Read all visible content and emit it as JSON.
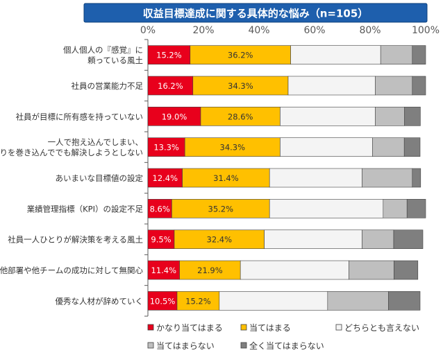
{
  "chart_data": {
    "type": "bar",
    "orientation": "horizontal",
    "stacked": true,
    "title": "収益目標達成に関する具体的な悩み（n=105）",
    "xlim": [
      0,
      100
    ],
    "ticks": [
      0,
      20,
      40,
      60,
      80,
      100
    ],
    "tick_labels": [
      "0%",
      "20%",
      "40%",
      "60%",
      "80%",
      "100%"
    ],
    "categories": [
      [
        "個人個人の『感覚』に",
        "頼っている風土"
      ],
      [
        "社員の営業能力不足"
      ],
      [
        "社員が目標に所有感を持っていない"
      ],
      [
        "一人で抱え込んでしまい、",
        "周りを巻き込んででも解決しようとしない"
      ],
      [
        "あいまいな目標値の設定"
      ],
      [
        "業績管理指標（KPI）の設定不足"
      ],
      [
        "社員一人ひとりが解決策を考える風土"
      ],
      [
        "他部署や他チームの成功に対して無関心"
      ],
      [
        "優秀な人材が辞めていく"
      ]
    ],
    "series": [
      {
        "name": "かなり当てはまる",
        "color": "#e8001c",
        "label_color": "#ffffff",
        "labeled": true,
        "values": [
          15.2,
          16.2,
          19.0,
          13.3,
          12.4,
          8.6,
          9.5,
          11.4,
          10.5
        ]
      },
      {
        "name": "当てはまる",
        "color": "#ffc000",
        "label_color": "#333333",
        "labeled": true,
        "values": [
          36.2,
          34.3,
          28.6,
          34.3,
          31.4,
          35.2,
          32.4,
          21.9,
          15.2
        ]
      },
      {
        "name": "どちらとも言えない",
        "color": "#f4f4f4",
        "labeled": false,
        "values": [
          32.4,
          31.4,
          34.3,
          33.3,
          33.3,
          40.9,
          35.2,
          39.1,
          39.0
        ]
      },
      {
        "name": "当てはまらない",
        "color": "#bfbfbf",
        "labeled": false,
        "values": [
          11.4,
          13.3,
          10.5,
          11.4,
          18.1,
          8.6,
          11.4,
          16.2,
          21.9
        ]
      },
      {
        "name": "全く当てはまらない",
        "color": "#7f7f7f",
        "labeled": false,
        "values": [
          4.8,
          4.8,
          5.7,
          5.7,
          3.0,
          6.7,
          10.5,
          8.6,
          11.4
        ]
      }
    ],
    "legend_position": "bottom"
  }
}
